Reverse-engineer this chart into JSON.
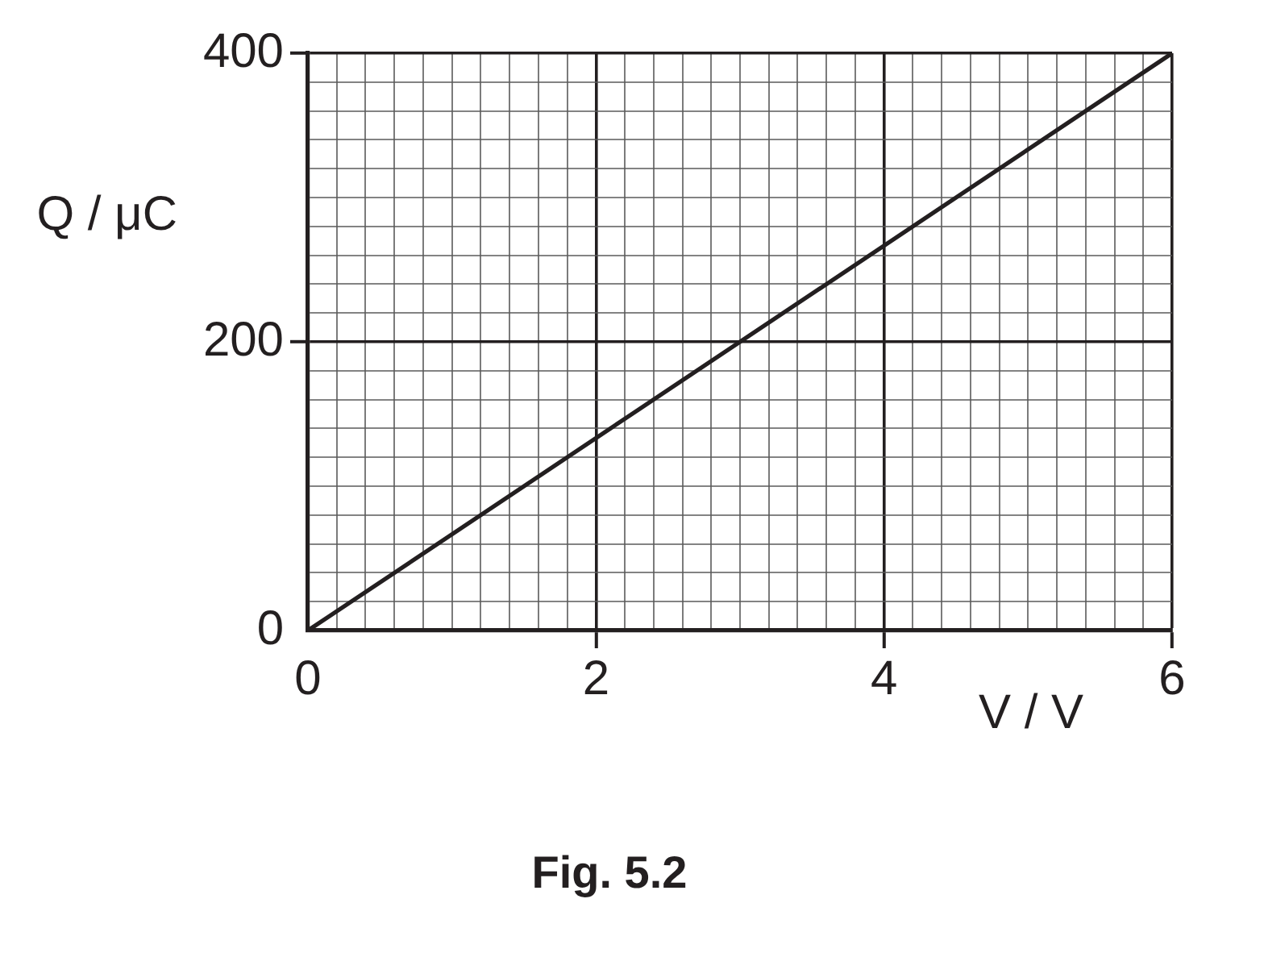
{
  "chart_data": {
    "type": "line",
    "xlabel": "V / V",
    "ylabel": "Q / μC",
    "annotations": [
      "Fig. 5.2"
    ],
    "x": [
      0,
      6
    ],
    "series": [
      {
        "color": "#231f20",
        "values": [
          0,
          400
        ]
      }
    ],
    "xlim": [
      0,
      6
    ],
    "ylim": [
      0,
      400
    ],
    "xticks": [
      0,
      {
        "value": 0.2,
        "label": null
      },
      {
        "value": 0.4,
        "label": null
      },
      {
        "value": 0.6,
        "label": null
      },
      {
        "value": 0.8,
        "label": null
      },
      {
        "value": 1,
        "label": null
      },
      {
        "value": 1.2,
        "label": null
      },
      {
        "value": 1.4,
        "label": null
      },
      {
        "value": 1.6,
        "label": null
      },
      {
        "value": 1.8,
        "label": null
      },
      2,
      {
        "value": 2.2,
        "label": null
      },
      {
        "value": 2.4,
        "label": null
      },
      {
        "value": 2.6,
        "label": null
      },
      {
        "value": 2.8,
        "label": null
      },
      {
        "value": 3,
        "label": null
      },
      {
        "value": 3.2,
        "label": null
      },
      {
        "value": 3.4,
        "label": null
      },
      {
        "value": 3.6,
        "label": null
      },
      {
        "value": 3.8,
        "label": null
      },
      4,
      {
        "value": 4.2,
        "label": null
      },
      {
        "value": 4.4,
        "label": null
      },
      {
        "value": 4.6,
        "label": null
      },
      {
        "value": 4.8,
        "label": null
      },
      {
        "value": 5,
        "label": null
      },
      {
        "value": 5.2,
        "label": null
      },
      {
        "value": 5.4,
        "label": null
      },
      {
        "value": 5.6,
        "label": null
      },
      {
        "value": 5.8,
        "label": null
      },
      6
    ],
    "yticks": [
      0,
      {
        "value": 20,
        "label": null
      },
      {
        "value": 40,
        "label": null
      },
      {
        "value": 60,
        "label": null
      },
      {
        "value": 80,
        "label": null
      },
      {
        "value": 100,
        "label": null
      },
      {
        "value": 120,
        "label": null
      },
      {
        "value": 140,
        "label": null
      },
      {
        "value": 160,
        "label": null
      },
      {
        "value": 180,
        "label": null
      },
      200,
      {
        "value": 220,
        "label": null
      },
      {
        "value": 240,
        "label": null
      },
      {
        "value": 260,
        "label": null
      },
      {
        "value": 280,
        "label": null
      },
      {
        "value": 300,
        "label": null
      },
      {
        "value": 320,
        "label": null
      },
      {
        "value": 340,
        "label": null
      },
      {
        "value": 360,
        "label": null
      },
      {
        "value": 380,
        "label": null
      },
      400
    ],
    "grid": true,
    "marker": "none"
  }
}
